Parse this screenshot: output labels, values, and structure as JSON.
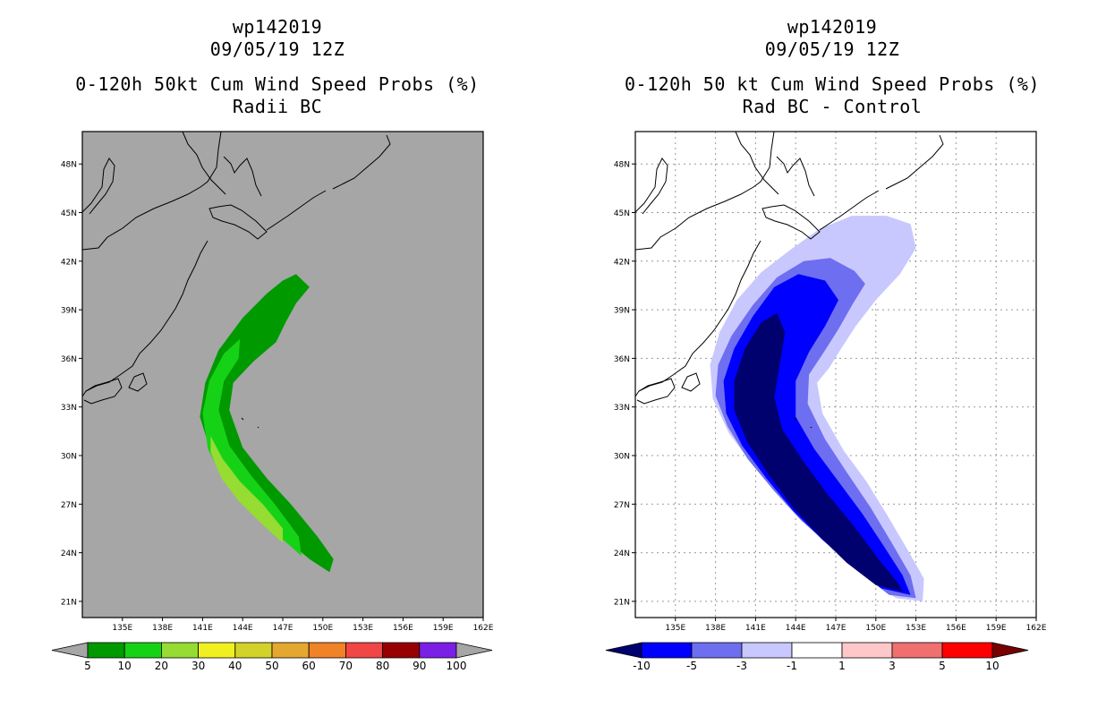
{
  "chart_data": [
    {
      "type": "heatmap",
      "title_lines": [
        "wp142019",
        "09/05/19 12Z",
        "0-120h 50kt Cum Wind Speed Probs (%)",
        "Radii BC"
      ],
      "lat_ticks": [
        "21N",
        "24N",
        "27N",
        "30N",
        "33N",
        "36N",
        "39N",
        "42N",
        "45N",
        "48N"
      ],
      "lon_ticks": [
        "135E",
        "138E",
        "141E",
        "144E",
        "147E",
        "150E",
        "153E",
        "156E",
        "159E",
        "162E"
      ],
      "lat_range": [
        20,
        50
      ],
      "lon_range": [
        132,
        162
      ],
      "grid": false,
      "colorbar": {
        "labels": [
          "5",
          "10",
          "20",
          "30",
          "40",
          "50",
          "60",
          "70",
          "80",
          "90",
          "100"
        ],
        "colors": [
          "#009a00",
          "#16d216",
          "#96dc32",
          "#f0f020",
          "#d2d22a",
          "#e4a830",
          "#f08228",
          "#f04646",
          "#960000",
          "#7b1ee6"
        ],
        "under_color": "#a6a6a6",
        "over_color": "#a6a6a6"
      },
      "background_color": "#a6a6a6"
    },
    {
      "type": "heatmap",
      "title_lines": [
        "wp142019",
        "09/05/19 12Z",
        "0-120h 50 kt Cum Wind Speed Probs (%)",
        "Rad BC - Control"
      ],
      "lat_ticks": [
        "21N",
        "24N",
        "27N",
        "30N",
        "33N",
        "36N",
        "39N",
        "42N",
        "45N",
        "48N"
      ],
      "lon_ticks": [
        "135E",
        "138E",
        "141E",
        "144E",
        "147E",
        "150E",
        "153E",
        "156E",
        "159E",
        "162E"
      ],
      "lat_range": [
        20,
        50
      ],
      "lon_range": [
        132,
        162
      ],
      "grid": true,
      "colorbar": {
        "labels": [
          "-10",
          "-5",
          "-3",
          "-1",
          "1",
          "3",
          "5",
          "10"
        ],
        "colors": [
          "#0000ff",
          "#6e6ef0",
          "#c8c8ff",
          "#ffffff",
          "#ffc8c8",
          "#f07070",
          "#ff0000"
        ],
        "under_color": "#00006e",
        "over_color": "#780000"
      },
      "background_color": "#ffffff"
    }
  ]
}
